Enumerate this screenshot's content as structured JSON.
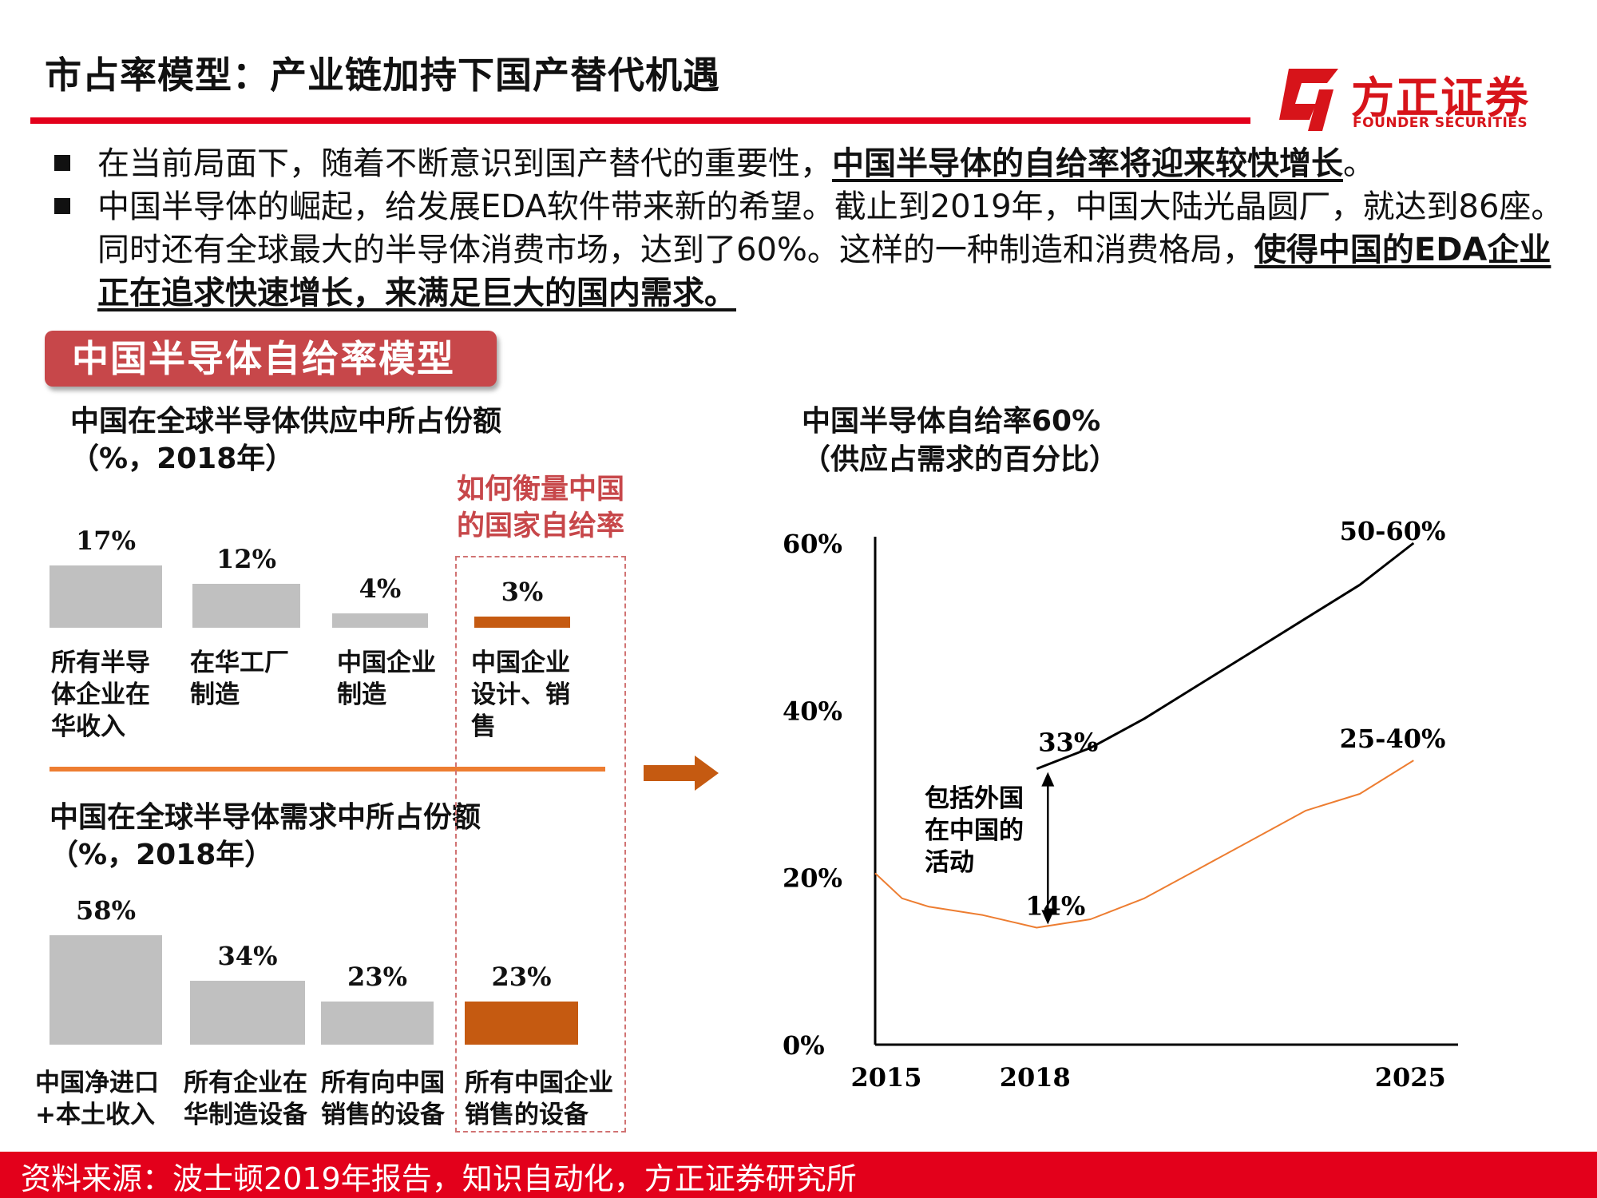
{
  "header": {
    "title": "市占率模型：产业链加持下国产替代机遇",
    "logo_cn": "方正证券",
    "logo_en": "FOUNDER SECURITIES",
    "accent_color": "#e3001b"
  },
  "bullets": [
    {
      "normal": "在当前局面下，随着不断意识到国产替代的重要性，",
      "bold": "中国半导体的自给率将迎来较快增长",
      "tail": "。"
    },
    {
      "normal": "中国半导体的崛起，给发展EDA软件带来新的希望。截止到2019年，中国大陆光晶圆厂，就达到86座。同时还有全球最大的半导体消费市场，达到了60%。这样的一种制造和消费格局，",
      "bold": "使得中国的EDA企业正在追求快速增长，来满足巨大的国内需求。",
      "tail": ""
    }
  ],
  "badge": "中国半导体自给率模型",
  "measure_label": "如何衡量中国的国家自给率",
  "footer": "资料来源：波士顿2019年报告，知识自动化，方正证券研究所",
  "chart_data": [
    {
      "type": "bar",
      "title": "中国在全球半导体供应中所占份额（%，2018年）",
      "categories": [
        "所有半导体企业在华收入",
        "在华工厂制造",
        "中国企业制造",
        "中国企业设计、销售"
      ],
      "category_lines": [
        [
          "所有半导",
          "体企业在",
          "华收入"
        ],
        [
          "在华工厂",
          "制造"
        ],
        [
          "中国企业",
          "制造"
        ],
        [
          "中国企业",
          "设计、销",
          "售"
        ]
      ],
      "values": [
        17,
        12,
        4,
        3
      ],
      "value_labels": [
        "17%",
        "12%",
        "4%",
        "3%"
      ],
      "highlight_index": 3,
      "colors": {
        "bar": "#c0c0c0",
        "highlight": "#c55a11"
      }
    },
    {
      "type": "bar",
      "title": "中国在全球半导体需求中所占份额（%，2018年）",
      "categories": [
        "中国净进口+本土收入",
        "所有企业在华制造设备",
        "所有向中国销售的设备",
        "所有中国企业销售的设备"
      ],
      "category_lines": [
        [
          "中国净进口",
          "+本土收入"
        ],
        [
          "所有企业在",
          "华制造设备"
        ],
        [
          "所有向中国",
          "销售的设备"
        ],
        [
          "所有中国企业",
          "销售的设备"
        ]
      ],
      "values": [
        58,
        34,
        23,
        23
      ],
      "value_labels": [
        "58%",
        "34%",
        "23%",
        "23%"
      ],
      "highlight_index": 3,
      "colors": {
        "bar": "#c0c0c0",
        "highlight": "#c55a11"
      }
    },
    {
      "type": "line",
      "title_lines": [
        "中国半导体自给率60%",
        "（供应占需求的百分比）"
      ],
      "x_ticks": [
        "2015",
        "2018",
        "2025"
      ],
      "y_ticks": [
        "60%",
        "40%",
        "20%",
        "0%"
      ],
      "ylim": [
        0,
        60
      ],
      "series": [
        {
          "color": "#000000",
          "x": [
            2018,
            2019,
            2020,
            2021,
            2022,
            2023,
            2024,
            2025
          ],
          "y": [
            33,
            35.5,
            39,
            43,
            47,
            51,
            55,
            60
          ]
        },
        {
          "color": "#ed7d31",
          "x": [
            2015,
            2015.5,
            2016,
            2017,
            2018,
            2019,
            2020,
            2021,
            2022,
            2023,
            2024,
            2025
          ],
          "y": [
            20.5,
            17.5,
            16.5,
            15.5,
            14,
            15,
            17.5,
            21,
            24.5,
            28,
            30,
            34
          ]
        }
      ],
      "annotations": {
        "upper_end": "50-60%",
        "lower_end": "25-40%",
        "upper_start": "33%",
        "lower_start": "14%",
        "gap_note": [
          "包括外国",
          "在中国的",
          "活动"
        ]
      }
    }
  ]
}
